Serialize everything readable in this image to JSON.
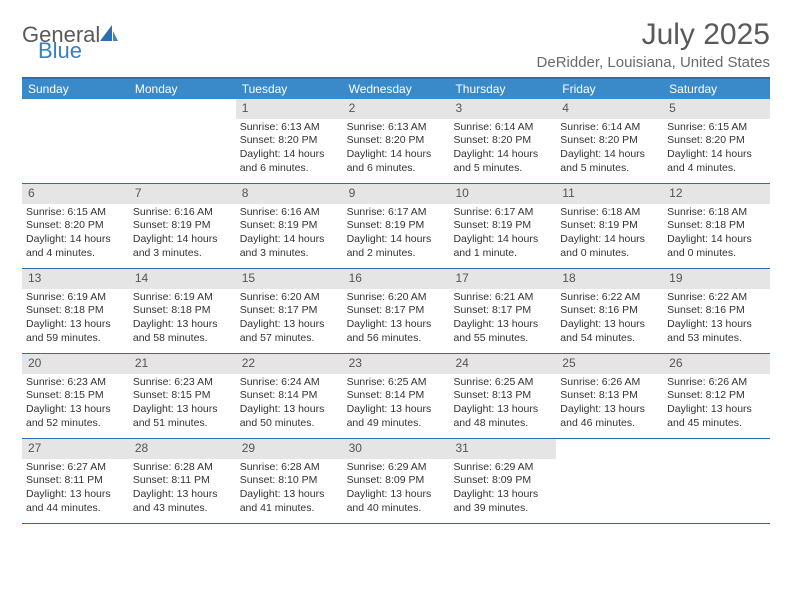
{
  "logo": {
    "line1": "General",
    "line2": "Blue"
  },
  "title": "July 2025",
  "location": "DeRidder, Louisiana, United States",
  "colors": {
    "header_bg": "#3a8ac9",
    "header_text": "#ffffff",
    "border": "#2b6fb0",
    "daynum_bg": "#e5e5e5",
    "text": "#333333",
    "title_text": "#5a5a5a",
    "logo_gray": "#5a5a5a",
    "logo_blue": "#3a7fc4"
  },
  "daysOfWeek": [
    "Sunday",
    "Monday",
    "Tuesday",
    "Wednesday",
    "Thursday",
    "Friday",
    "Saturday"
  ],
  "weeks": [
    [
      {
        "n": "",
        "sr": "",
        "ss": "",
        "dl": ""
      },
      {
        "n": "",
        "sr": "",
        "ss": "",
        "dl": ""
      },
      {
        "n": "1",
        "sr": "Sunrise: 6:13 AM",
        "ss": "Sunset: 8:20 PM",
        "dl": "Daylight: 14 hours and 6 minutes."
      },
      {
        "n": "2",
        "sr": "Sunrise: 6:13 AM",
        "ss": "Sunset: 8:20 PM",
        "dl": "Daylight: 14 hours and 6 minutes."
      },
      {
        "n": "3",
        "sr": "Sunrise: 6:14 AM",
        "ss": "Sunset: 8:20 PM",
        "dl": "Daylight: 14 hours and 5 minutes."
      },
      {
        "n": "4",
        "sr": "Sunrise: 6:14 AM",
        "ss": "Sunset: 8:20 PM",
        "dl": "Daylight: 14 hours and 5 minutes."
      },
      {
        "n": "5",
        "sr": "Sunrise: 6:15 AM",
        "ss": "Sunset: 8:20 PM",
        "dl": "Daylight: 14 hours and 4 minutes."
      }
    ],
    [
      {
        "n": "6",
        "sr": "Sunrise: 6:15 AM",
        "ss": "Sunset: 8:20 PM",
        "dl": "Daylight: 14 hours and 4 minutes."
      },
      {
        "n": "7",
        "sr": "Sunrise: 6:16 AM",
        "ss": "Sunset: 8:19 PM",
        "dl": "Daylight: 14 hours and 3 minutes."
      },
      {
        "n": "8",
        "sr": "Sunrise: 6:16 AM",
        "ss": "Sunset: 8:19 PM",
        "dl": "Daylight: 14 hours and 3 minutes."
      },
      {
        "n": "9",
        "sr": "Sunrise: 6:17 AM",
        "ss": "Sunset: 8:19 PM",
        "dl": "Daylight: 14 hours and 2 minutes."
      },
      {
        "n": "10",
        "sr": "Sunrise: 6:17 AM",
        "ss": "Sunset: 8:19 PM",
        "dl": "Daylight: 14 hours and 1 minute."
      },
      {
        "n": "11",
        "sr": "Sunrise: 6:18 AM",
        "ss": "Sunset: 8:19 PM",
        "dl": "Daylight: 14 hours and 0 minutes."
      },
      {
        "n": "12",
        "sr": "Sunrise: 6:18 AM",
        "ss": "Sunset: 8:18 PM",
        "dl": "Daylight: 14 hours and 0 minutes."
      }
    ],
    [
      {
        "n": "13",
        "sr": "Sunrise: 6:19 AM",
        "ss": "Sunset: 8:18 PM",
        "dl": "Daylight: 13 hours and 59 minutes."
      },
      {
        "n": "14",
        "sr": "Sunrise: 6:19 AM",
        "ss": "Sunset: 8:18 PM",
        "dl": "Daylight: 13 hours and 58 minutes."
      },
      {
        "n": "15",
        "sr": "Sunrise: 6:20 AM",
        "ss": "Sunset: 8:17 PM",
        "dl": "Daylight: 13 hours and 57 minutes."
      },
      {
        "n": "16",
        "sr": "Sunrise: 6:20 AM",
        "ss": "Sunset: 8:17 PM",
        "dl": "Daylight: 13 hours and 56 minutes."
      },
      {
        "n": "17",
        "sr": "Sunrise: 6:21 AM",
        "ss": "Sunset: 8:17 PM",
        "dl": "Daylight: 13 hours and 55 minutes."
      },
      {
        "n": "18",
        "sr": "Sunrise: 6:22 AM",
        "ss": "Sunset: 8:16 PM",
        "dl": "Daylight: 13 hours and 54 minutes."
      },
      {
        "n": "19",
        "sr": "Sunrise: 6:22 AM",
        "ss": "Sunset: 8:16 PM",
        "dl": "Daylight: 13 hours and 53 minutes."
      }
    ],
    [
      {
        "n": "20",
        "sr": "Sunrise: 6:23 AM",
        "ss": "Sunset: 8:15 PM",
        "dl": "Daylight: 13 hours and 52 minutes."
      },
      {
        "n": "21",
        "sr": "Sunrise: 6:23 AM",
        "ss": "Sunset: 8:15 PM",
        "dl": "Daylight: 13 hours and 51 minutes."
      },
      {
        "n": "22",
        "sr": "Sunrise: 6:24 AM",
        "ss": "Sunset: 8:14 PM",
        "dl": "Daylight: 13 hours and 50 minutes."
      },
      {
        "n": "23",
        "sr": "Sunrise: 6:25 AM",
        "ss": "Sunset: 8:14 PM",
        "dl": "Daylight: 13 hours and 49 minutes."
      },
      {
        "n": "24",
        "sr": "Sunrise: 6:25 AM",
        "ss": "Sunset: 8:13 PM",
        "dl": "Daylight: 13 hours and 48 minutes."
      },
      {
        "n": "25",
        "sr": "Sunrise: 6:26 AM",
        "ss": "Sunset: 8:13 PM",
        "dl": "Daylight: 13 hours and 46 minutes."
      },
      {
        "n": "26",
        "sr": "Sunrise: 6:26 AM",
        "ss": "Sunset: 8:12 PM",
        "dl": "Daylight: 13 hours and 45 minutes."
      }
    ],
    [
      {
        "n": "27",
        "sr": "Sunrise: 6:27 AM",
        "ss": "Sunset: 8:11 PM",
        "dl": "Daylight: 13 hours and 44 minutes."
      },
      {
        "n": "28",
        "sr": "Sunrise: 6:28 AM",
        "ss": "Sunset: 8:11 PM",
        "dl": "Daylight: 13 hours and 43 minutes."
      },
      {
        "n": "29",
        "sr": "Sunrise: 6:28 AM",
        "ss": "Sunset: 8:10 PM",
        "dl": "Daylight: 13 hours and 41 minutes."
      },
      {
        "n": "30",
        "sr": "Sunrise: 6:29 AM",
        "ss": "Sunset: 8:09 PM",
        "dl": "Daylight: 13 hours and 40 minutes."
      },
      {
        "n": "31",
        "sr": "Sunrise: 6:29 AM",
        "ss": "Sunset: 8:09 PM",
        "dl": "Daylight: 13 hours and 39 minutes."
      },
      {
        "n": "",
        "sr": "",
        "ss": "",
        "dl": ""
      },
      {
        "n": "",
        "sr": "",
        "ss": "",
        "dl": ""
      }
    ]
  ]
}
